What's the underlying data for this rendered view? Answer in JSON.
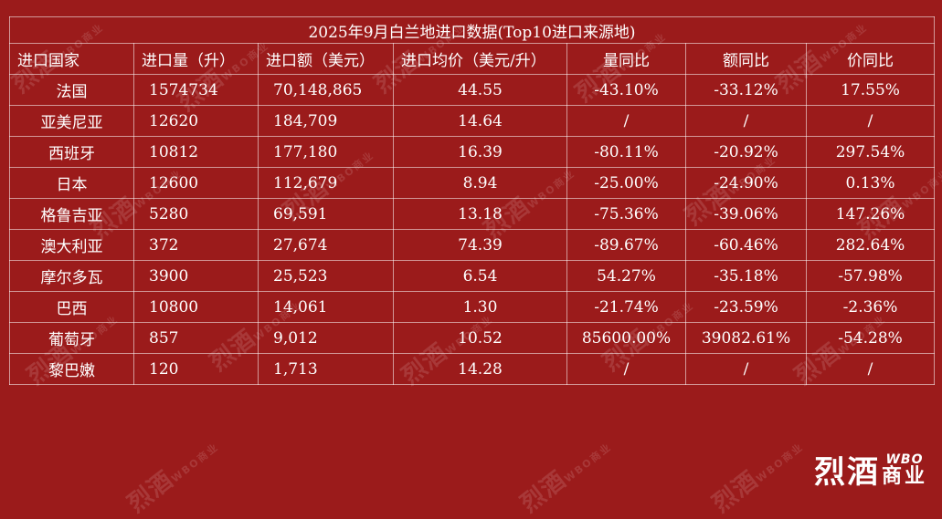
{
  "table": {
    "title": "2025年9月白兰地进口数据(Top10进口来源地)",
    "headers": [
      "进口国家",
      "进口量（升）",
      "进口额（美元）",
      "进口均价（美元/升）",
      "量同比",
      "额同比",
      "价同比"
    ],
    "rows": [
      [
        "法国",
        "1574734",
        "70,148,865",
        "44.55",
        "-43.10%",
        "-33.12%",
        "17.55%"
      ],
      [
        "亚美尼亚",
        "12620",
        "184,709",
        "14.64",
        "/",
        "/",
        "/"
      ],
      [
        "西班牙",
        "10812",
        "177,180",
        "16.39",
        "-80.11%",
        "-20.92%",
        "297.54%"
      ],
      [
        "日本",
        "12600",
        "112,679",
        "8.94",
        "-25.00%",
        "-24.90%",
        "0.13%"
      ],
      [
        "格鲁吉亚",
        "5280",
        "69,591",
        "13.18",
        "-75.36%",
        "-39.06%",
        "147.26%"
      ],
      [
        "澳大利亚",
        "372",
        "27,674",
        "74.39",
        "-89.67%",
        "-60.46%",
        "282.64%"
      ],
      [
        "摩尔多瓦",
        "3900",
        "25,523",
        "6.54",
        "54.27%",
        "-35.18%",
        "-57.98%"
      ],
      [
        "巴西",
        "10800",
        "14,061",
        "1.30",
        "-21.74%",
        "-23.59%",
        "-2.36%"
      ],
      [
        "葡萄牙",
        "857",
        "9,012",
        "10.52",
        "85600.00%",
        "39082.61%",
        "-54.28%"
      ],
      [
        "黎巴嫩",
        "120",
        "1,713",
        "14.28",
        "/",
        "/",
        "/"
      ]
    ]
  },
  "logo": {
    "main": "烈酒",
    "sub_latin": "WBO",
    "sub_cn": "商业"
  },
  "watermark": {
    "main": "烈酒",
    "sub_latin": "WBO",
    "sub_cn": "商业"
  },
  "colors": {
    "background": "#9b1b1b",
    "text": "#ffffff"
  }
}
